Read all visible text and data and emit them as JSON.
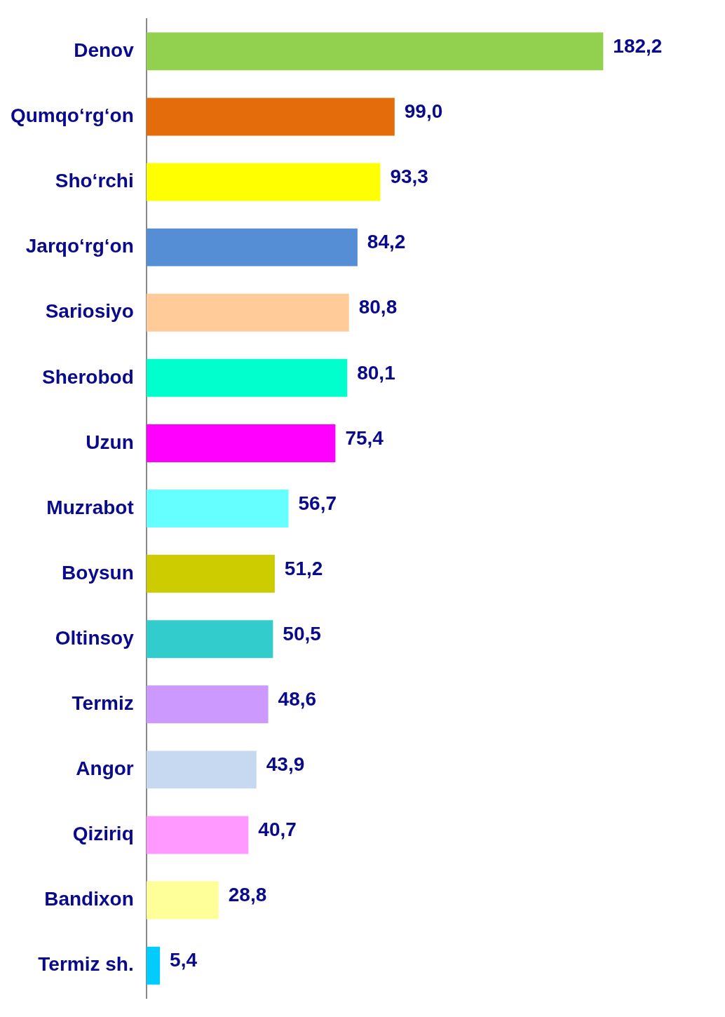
{
  "chart_data": {
    "type": "bar",
    "orientation": "horizontal",
    "categories": [
      "Denov",
      "Qumqo‘rg‘on",
      "Sho‘rchi",
      "Jarqo‘rg‘on",
      "Sariosiyo",
      "Sherobod",
      "Uzun",
      "Muzrabot",
      "Boysun",
      "Oltinsoy",
      "Termiz",
      "Angor",
      "Qiziriq",
      "Bandixon",
      "Termiz sh."
    ],
    "values": [
      182.2,
      99.0,
      93.3,
      84.2,
      80.8,
      80.1,
      75.4,
      56.7,
      51.2,
      50.5,
      48.6,
      43.9,
      40.7,
      28.8,
      5.4
    ],
    "colors": [
      "#92d050",
      "#e46c0a",
      "#ffff00",
      "#558ed5",
      "#ffcc99",
      "#00ffcc",
      "#ff00ff",
      "#66ffff",
      "#cccc00",
      "#33cccc",
      "#cc99ff",
      "#c6d9f1",
      "#ff99ff",
      "#ffff99",
      "#00ccff"
    ],
    "value_labels": [
      "182,2",
      "99,0",
      "93,3",
      "84,2",
      "80,8",
      "80,1",
      "75,4",
      "56,7",
      "51,2",
      "50,5",
      "48,6",
      "43,9",
      "40,7",
      "28,8",
      "5,4"
    ],
    "tick_labels": "y",
    "grid": false,
    "legend": false
  }
}
